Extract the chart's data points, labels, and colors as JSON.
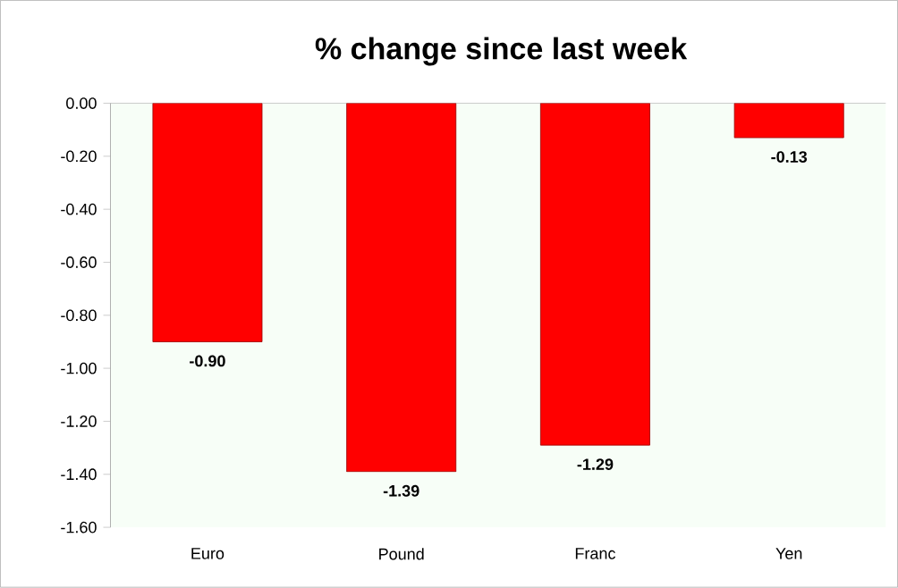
{
  "chart_data": {
    "type": "bar",
    "title": "% change since last week",
    "categories": [
      "Euro",
      "Pound",
      "Franc",
      "Yen"
    ],
    "values": [
      -0.9,
      -1.39,
      -1.29,
      -0.13
    ],
    "value_labels": [
      "-0.90",
      "-1.39",
      "-1.29",
      "-0.13"
    ],
    "color": "#ff0000",
    "ylim": [
      -1.6,
      0
    ],
    "yticks": [
      {
        "value": 0,
        "label": "0.00"
      },
      {
        "value": -0.2,
        "label": "-0.20"
      },
      {
        "value": -0.4,
        "label": "-0.40"
      },
      {
        "value": -0.6,
        "label": "-0.60"
      },
      {
        "value": -0.8,
        "label": "-0.80"
      },
      {
        "value": -1.0,
        "label": "-1.00"
      },
      {
        "value": -1.2,
        "label": "-1.20"
      },
      {
        "value": -1.4,
        "label": "-1.40"
      },
      {
        "value": -1.6,
        "label": "-1.60"
      }
    ]
  }
}
